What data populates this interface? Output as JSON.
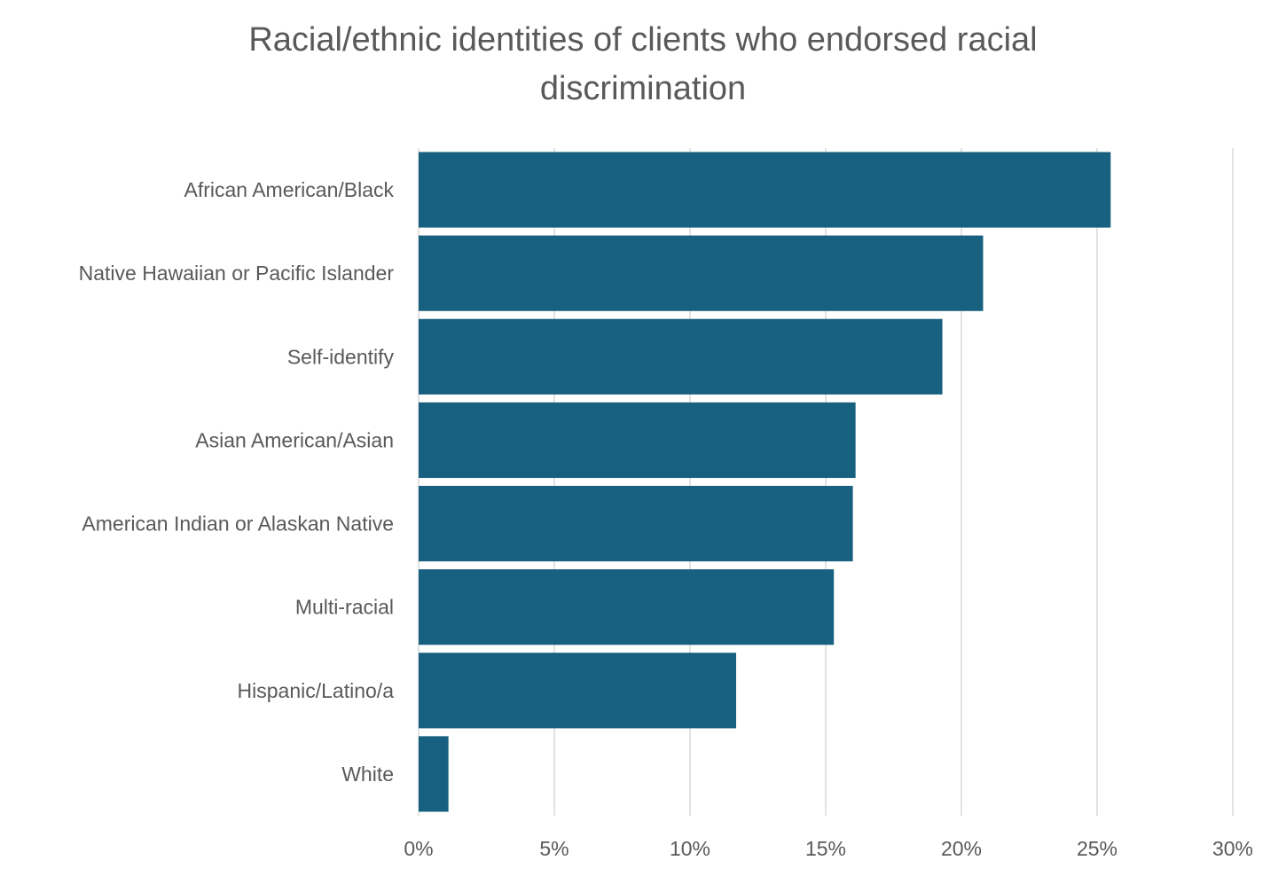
{
  "chart_data": {
    "type": "bar",
    "orientation": "horizontal",
    "title_lines": [
      "Racial/ethnic identities of clients who endorsed racial",
      "discrimination"
    ],
    "categories": [
      "African American/Black",
      "Native Hawaiian or Pacific Islander",
      "Self-identify",
      "Asian American/Asian",
      "American Indian or Alaskan Native",
      "Multi-racial",
      "Hispanic/Latino/a",
      "White"
    ],
    "values": [
      25.5,
      20.8,
      19.3,
      16.1,
      16.0,
      15.3,
      11.7,
      1.1
    ],
    "value_unit": "%",
    "xlim": [
      0,
      30
    ],
    "x_ticks": [
      "0%",
      "5%",
      "10%",
      "15%",
      "20%",
      "25%",
      "30%"
    ],
    "grid": "vertical",
    "legend": "none",
    "bar_color": "#17607F",
    "grid_color": "#D9D9D9",
    "text_color": "#595959"
  }
}
